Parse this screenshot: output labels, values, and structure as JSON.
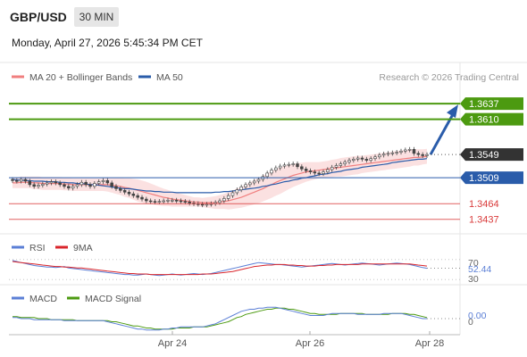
{
  "header": {
    "symbol": "GBP/USD",
    "timeframe": "30 MIN",
    "datetime": "Monday, April 27, 2026 5:45:34 PM CET",
    "credit": "Research © 2026 Trading Central"
  },
  "colors": {
    "resistance": "#4c9a10",
    "current": "#333333",
    "pivot": "#2a5caa",
    "support": "#d93a3a",
    "ma20": "#f07f7f",
    "ma50": "#2a5caa",
    "rsi": "#5b7fd6",
    "rsi_ma": "#d9252b",
    "macd": "#5b7fd6",
    "macd_signal": "#4c9a10",
    "arrow": "#2a5caa"
  },
  "chart_data": [
    {
      "type": "candlestick",
      "legend": [
        "MA 20 + Bollinger Bands",
        "MA 50"
      ],
      "x_ticks": [
        "Apr 24",
        "Apr 26",
        "Apr 28"
      ],
      "ylim": [
        1.3415,
        1.3665
      ],
      "levels": [
        {
          "name": "resistance-2",
          "value": 1.3637,
          "label": "1.3637",
          "kind": "resistance"
        },
        {
          "name": "resistance-1",
          "value": 1.361,
          "label": "1.3610",
          "kind": "resistance"
        },
        {
          "name": "current-price",
          "value": 1.3549,
          "label": "1.3549",
          "kind": "current"
        },
        {
          "name": "pivot",
          "value": 1.3509,
          "label": "1.3509",
          "kind": "pivot"
        },
        {
          "name": "support-1",
          "value": 1.3464,
          "label": "1.3464",
          "kind": "support"
        },
        {
          "name": "support-2",
          "value": 1.3437,
          "label": "1.3437",
          "kind": "support"
        }
      ],
      "close": [
        1.3504,
        1.3503,
        1.3506,
        1.3503,
        1.3497,
        1.3494,
        1.3496,
        1.3498,
        1.35,
        1.3502,
        1.35,
        1.3497,
        1.3494,
        1.3491,
        1.3494,
        1.3497,
        1.3501,
        1.3497,
        1.3494,
        1.3499,
        1.3502,
        1.3504,
        1.35,
        1.3494,
        1.349,
        1.3487,
        1.3484,
        1.3481,
        1.3478,
        1.3475,
        1.3472,
        1.3469,
        1.3468,
        1.3467,
        1.3468,
        1.3469,
        1.347,
        1.347,
        1.3469,
        1.3468,
        1.3467,
        1.3465,
        1.3464,
        1.3463,
        1.3462,
        1.3463,
        1.3464,
        1.3466,
        1.3469,
        1.3473,
        1.3478,
        1.3483,
        1.3488,
        1.3493,
        1.3497,
        1.35,
        1.3503,
        1.3506,
        1.3511,
        1.3517,
        1.3522,
        1.3526,
        1.3529,
        1.3531,
        1.3532,
        1.3533,
        1.3528,
        1.3524,
        1.3521,
        1.3519,
        1.3517,
        1.3516,
        1.3519,
        1.3523,
        1.3527,
        1.353,
        1.3533,
        1.3536,
        1.3539,
        1.3541,
        1.3543,
        1.3541,
        1.3539,
        1.3542,
        1.3545,
        1.3548,
        1.355,
        1.3551,
        1.3552,
        1.3553,
        1.3555,
        1.3557,
        1.3558,
        1.3551,
        1.3549,
        1.3547,
        1.3549
      ],
      "open": [
        1.3506,
        1.3504,
        1.3503,
        1.3506,
        1.3503,
        1.3497,
        1.3494,
        1.3496,
        1.3498,
        1.35,
        1.3502,
        1.35,
        1.3497,
        1.3494,
        1.3491,
        1.3494,
        1.3497,
        1.3501,
        1.3497,
        1.3494,
        1.3499,
        1.3502,
        1.3504,
        1.35,
        1.3494,
        1.349,
        1.3487,
        1.3484,
        1.3481,
        1.3478,
        1.3475,
        1.3472,
        1.3469,
        1.3468,
        1.3467,
        1.3468,
        1.3469,
        1.347,
        1.347,
        1.3469,
        1.3468,
        1.3467,
        1.3465,
        1.3464,
        1.3463,
        1.3462,
        1.3463,
        1.3464,
        1.3466,
        1.3469,
        1.3473,
        1.3478,
        1.3483,
        1.3488,
        1.3493,
        1.3497,
        1.35,
        1.3503,
        1.3506,
        1.3511,
        1.3517,
        1.3522,
        1.3526,
        1.3529,
        1.3531,
        1.3532,
        1.3533,
        1.3528,
        1.3524,
        1.3521,
        1.3519,
        1.3517,
        1.3516,
        1.3519,
        1.3523,
        1.3527,
        1.353,
        1.3533,
        1.3536,
        1.3539,
        1.3541,
        1.3543,
        1.3541,
        1.3539,
        1.3542,
        1.3545,
        1.3548,
        1.355,
        1.3551,
        1.3552,
        1.3553,
        1.3555,
        1.3557,
        1.3558,
        1.3551,
        1.3549,
        1.3547
      ],
      "ma20": [
        1.35,
        1.35,
        1.3501,
        1.3501,
        1.3501,
        1.35,
        1.35,
        1.3499,
        1.3499,
        1.3499,
        1.3499,
        1.3499,
        1.3498,
        1.3498,
        1.3497,
        1.3497,
        1.3497,
        1.3497,
        1.3497,
        1.3497,
        1.3497,
        1.3497,
        1.3497,
        1.3496,
        1.3495,
        1.3494,
        1.3492,
        1.3491,
        1.3489,
        1.3487,
        1.3485,
        1.3483,
        1.3481,
        1.3479,
        1.3477,
        1.3475,
        1.3474,
        1.3472,
        1.3471,
        1.347,
        1.3469,
        1.3468,
        1.3467,
        1.3467,
        1.3466,
        1.3466,
        1.3466,
        1.3466,
        1.3467,
        1.3468,
        1.3469,
        1.3471,
        1.3473,
        1.3475,
        1.3478,
        1.3481,
        1.3484,
        1.3487,
        1.349,
        1.3494,
        1.3497,
        1.3501,
        1.3504,
        1.3507,
        1.351,
        1.3513,
        1.3515,
        1.3517,
        1.3519,
        1.352,
        1.3521,
        1.3522,
        1.3523,
        1.3524,
        1.3525,
        1.3526,
        1.3527,
        1.3528,
        1.3529,
        1.353,
        1.3531,
        1.3532,
        1.3533,
        1.3534,
        1.3535,
        1.3536,
        1.3537,
        1.3538,
        1.3539,
        1.354,
        1.3541,
        1.3542,
        1.3543,
        1.3544,
        1.3544,
        1.3545,
        1.3546
      ],
      "ma50": [
        1.3506,
        1.3505,
        1.3505,
        1.3504,
        1.3504,
        1.3503,
        1.3503,
        1.3503,
        1.3502,
        1.3502,
        1.3502,
        1.3501,
        1.3501,
        1.35,
        1.35,
        1.3499,
        1.3499,
        1.3498,
        1.3497,
        1.3497,
        1.3496,
        1.3495,
        1.3494,
        1.3493,
        1.3492,
        1.3491,
        1.349,
        1.349,
        1.3489,
        1.3488,
        1.3487,
        1.3486,
        1.3486,
        1.3485,
        1.3485,
        1.3484,
        1.3484,
        1.3484,
        1.3483,
        1.3483,
        1.3483,
        1.3483,
        1.3483,
        1.3483,
        1.3483,
        1.3483,
        1.3483,
        1.3484,
        1.3484,
        1.3485,
        1.3485,
        1.3486,
        1.3487,
        1.3488,
        1.3489,
        1.349,
        1.3491,
        1.3492,
        1.3494,
        1.3495,
        1.3497,
        1.3498,
        1.35,
        1.3502,
        1.3503,
        1.3505,
        1.3506,
        1.3508,
        1.3509,
        1.3511,
        1.3512,
        1.3514,
        1.3515,
        1.3516,
        1.3518,
        1.3519,
        1.352,
        1.3522,
        1.3523,
        1.3524,
        1.3525,
        1.3527,
        1.3528,
        1.3529,
        1.353,
        1.3531,
        1.3532,
        1.3533,
        1.3535,
        1.3536,
        1.3537,
        1.3538,
        1.3539,
        1.354,
        1.3541,
        1.3541,
        1.3542
      ],
      "bb_width": [
        0.0009,
        0.0009,
        0.001,
        0.001,
        0.001,
        0.0011,
        0.0011,
        0.0011,
        0.0011,
        0.0011,
        0.0011,
        0.0011,
        0.0011,
        0.0011,
        0.0011,
        0.0011,
        0.0011,
        0.0011,
        0.0011,
        0.0011,
        0.0011,
        0.0011,
        0.0012,
        0.0013,
        0.0014,
        0.0015,
        0.0016,
        0.0017,
        0.0018,
        0.0019,
        0.0019,
        0.0019,
        0.0018,
        0.0017,
        0.0016,
        0.0015,
        0.0014,
        0.0013,
        0.0012,
        0.0011,
        0.001,
        0.0009,
        0.0008,
        0.0008,
        0.0008,
        0.0009,
        0.001,
        0.0011,
        0.0012,
        0.0013,
        0.0015,
        0.0016,
        0.0017,
        0.0018,
        0.0019,
        0.002,
        0.0021,
        0.0022,
        0.0022,
        0.0023,
        0.0023,
        0.0023,
        0.0023,
        0.0022,
        0.0021,
        0.002,
        0.0019,
        0.0018,
        0.0017,
        0.0016,
        0.0015,
        0.0014,
        0.0014,
        0.0014,
        0.0015,
        0.0015,
        0.0016,
        0.0016,
        0.0016,
        0.0016,
        0.0016,
        0.0015,
        0.0015,
        0.0015,
        0.0015,
        0.0015,
        0.0015,
        0.0015,
        0.0015,
        0.0015,
        0.0015,
        0.0015,
        0.0015,
        0.0014,
        0.0014,
        0.0013,
        0.0013
      ],
      "projection": {
        "from": 1.3549,
        "to": 1.3637
      }
    },
    {
      "type": "line",
      "panel": "RSI",
      "legend": [
        "RSI",
        "9MA"
      ],
      "ticks": [
        "70",
        "30"
      ],
      "ylim": [
        25,
        75
      ],
      "current_label": "52.44",
      "rsi": [
        68,
        66,
        64,
        62,
        60,
        58,
        57,
        56,
        55,
        55,
        54,
        55,
        56,
        53,
        52,
        51,
        50,
        49,
        48,
        47,
        46,
        45,
        44,
        43,
        42,
        41,
        40,
        40,
        39,
        39,
        40,
        41,
        40,
        39,
        38,
        39,
        40,
        41,
        40,
        39,
        40,
        41,
        42,
        41,
        40,
        41,
        42,
        44,
        46,
        48,
        50,
        52,
        54,
        56,
        58,
        60,
        62,
        64,
        63,
        62,
        61,
        60,
        60,
        59,
        58,
        57,
        56,
        55,
        56,
        57,
        58,
        59,
        60,
        61,
        62,
        61,
        60,
        59,
        60,
        61,
        62,
        63,
        62,
        61,
        60,
        59,
        60,
        61,
        62,
        63,
        62,
        61,
        60,
        58,
        56,
        54,
        52.44
      ],
      "rsi_ma": [
        66,
        65,
        64,
        63,
        62,
        61,
        60,
        59,
        58,
        57,
        56,
        56,
        55,
        55,
        54,
        53,
        53,
        52,
        51,
        50,
        49,
        48,
        47,
        46,
        45,
        44,
        43,
        42,
        42,
        41,
        41,
        41,
        40,
        40,
        40,
        40,
        40,
        40,
        40,
        40,
        40,
        40,
        40,
        40,
        41,
        41,
        41,
        42,
        43,
        44,
        45,
        46,
        48,
        50,
        52,
        54,
        56,
        57,
        58,
        59,
        59,
        60,
        60,
        60,
        59,
        59,
        58,
        58,
        57,
        57,
        57,
        58,
        58,
        59,
        59,
        60,
        60,
        60,
        60,
        60,
        60,
        61,
        61,
        61,
        61,
        61,
        61,
        61,
        61,
        61,
        61,
        61,
        61,
        60,
        59,
        58,
        57
      ]
    },
    {
      "type": "line",
      "panel": "MACD",
      "legend": [
        "MACD",
        "MACD Signal"
      ],
      "ticks": [
        "0"
      ],
      "ylim": [
        -0.0012,
        0.0012
      ],
      "current_label": "0.00",
      "macd": [
        0.0001,
        0.0001,
        0.0,
        0.0,
        0.0,
        -0.0001,
        -0.0001,
        -0.0001,
        -0.0001,
        -0.0001,
        -0.0001,
        -0.0001,
        -0.0002,
        -0.0002,
        -0.0002,
        -0.0002,
        -0.0002,
        -0.0002,
        -0.0002,
        -0.0002,
        -0.0002,
        -0.0002,
        -0.0003,
        -0.0004,
        -0.0005,
        -0.0006,
        -0.0007,
        -0.0008,
        -0.0009,
        -0.001,
        -0.001,
        -0.0011,
        -0.0011,
        -0.0011,
        -0.0011,
        -0.001,
        -0.001,
        -0.0009,
        -0.0009,
        -0.0008,
        -0.0008,
        -0.0008,
        -0.0008,
        -0.0008,
        -0.0008,
        -0.0007,
        -0.0006,
        -0.0005,
        -0.0003,
        -0.0001,
        0.0001,
        0.0003,
        0.0005,
        0.0007,
        0.0008,
        0.0009,
        0.0009,
        0.001,
        0.001,
        0.0011,
        0.0011,
        0.0011,
        0.001,
        0.0009,
        0.0008,
        0.0007,
        0.0006,
        0.0005,
        0.0004,
        0.0003,
        0.0003,
        0.0003,
        0.0003,
        0.0004,
        0.0005,
        0.0005,
        0.0005,
        0.0005,
        0.0005,
        0.0005,
        0.0004,
        0.0004,
        0.0004,
        0.0004,
        0.0004,
        0.0004,
        0.0005,
        0.0005,
        0.0005,
        0.0005,
        0.0005,
        0.0004,
        0.0003,
        0.0002,
        0.0001,
        0.0,
        0.0
      ],
      "signal": [
        0.0002,
        0.0002,
        0.0001,
        0.0001,
        0.0001,
        0.0001,
        0.0,
        0.0,
        0.0,
        -0.0001,
        -0.0001,
        -0.0001,
        -0.0001,
        -0.0001,
        -0.0001,
        -0.0002,
        -0.0002,
        -0.0002,
        -0.0002,
        -0.0002,
        -0.0002,
        -0.0002,
        -0.0002,
        -0.0003,
        -0.0003,
        -0.0004,
        -0.0005,
        -0.0006,
        -0.0007,
        -0.0007,
        -0.0008,
        -0.0009,
        -0.0009,
        -0.001,
        -0.001,
        -0.001,
        -0.001,
        -0.001,
        -0.0009,
        -0.0009,
        -0.0009,
        -0.0009,
        -0.0008,
        -0.0008,
        -0.0008,
        -0.0008,
        -0.0007,
        -0.0006,
        -0.0005,
        -0.0004,
        -0.0003,
        -0.0001,
        0.0001,
        0.0002,
        0.0004,
        0.0005,
        0.0006,
        0.0007,
        0.0008,
        0.0009,
        0.0009,
        0.001,
        0.001,
        0.001,
        0.0009,
        0.0009,
        0.0008,
        0.0007,
        0.0006,
        0.0005,
        0.0005,
        0.0004,
        0.0004,
        0.0004,
        0.0004,
        0.0004,
        0.0005,
        0.0005,
        0.0005,
        0.0005,
        0.0005,
        0.0005,
        0.0004,
        0.0004,
        0.0004,
        0.0004,
        0.0004,
        0.0004,
        0.0005,
        0.0005,
        0.0005,
        0.0005,
        0.0004,
        0.0004,
        0.0003,
        0.0002,
        0.0001
      ]
    }
  ]
}
